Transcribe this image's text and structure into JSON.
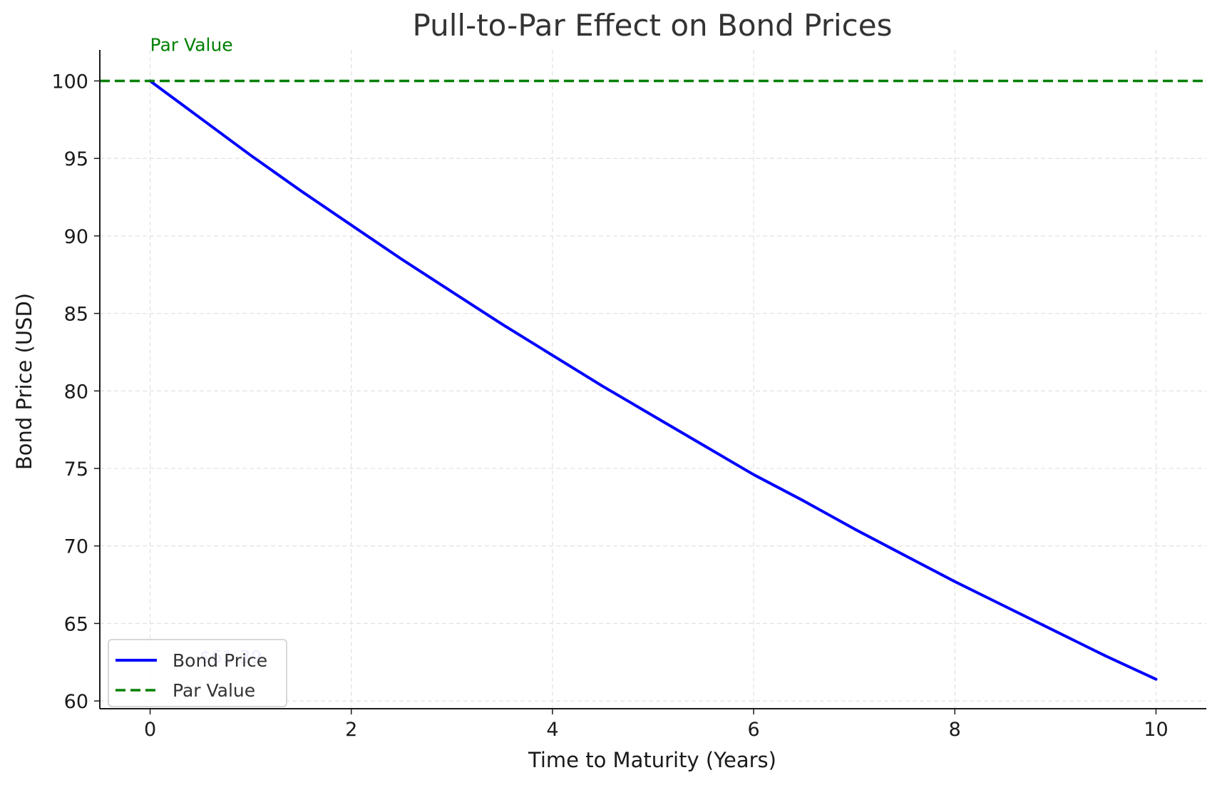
{
  "chart_data": {
    "type": "line",
    "title": "Pull-to-Par Effect on Bond Prices",
    "xlabel": "Time to Maturity (Years)",
    "ylabel": "Bond Price (USD)",
    "xlim": [
      -0.5,
      10.5
    ],
    "ylim": [
      59.5,
      102
    ],
    "xticks": [
      0,
      2,
      4,
      6,
      8,
      10
    ],
    "yticks": [
      60,
      65,
      70,
      75,
      80,
      85,
      90,
      95,
      100
    ],
    "grid": true,
    "legend_position": "lower-left",
    "series": [
      {
        "name": "Bond Price",
        "color": "#0000ff",
        "style": "solid",
        "x": [
          0,
          0.5,
          1,
          1.5,
          2,
          2.5,
          3,
          3.5,
          4,
          4.5,
          5,
          5.5,
          6,
          6.5,
          7,
          7.5,
          8,
          8.5,
          9,
          9.5,
          10
        ],
        "y": [
          100,
          97.6,
          95.2,
          92.9,
          90.7,
          88.5,
          86.4,
          84.3,
          82.3,
          80.3,
          78.4,
          76.5,
          74.6,
          72.9,
          71.1,
          69.4,
          67.7,
          66.1,
          64.5,
          62.9,
          61.4
        ]
      },
      {
        "name": "Par Value",
        "color": "#008000",
        "style": "dashed",
        "y_constant": 100
      }
    ],
    "annotations": [
      {
        "text": "Par Value",
        "x": 0,
        "y": 100,
        "color": "#008000"
      },
      {
        "text": "$61.39",
        "x": 10,
        "y": 61.39,
        "color": "#0000ff"
      }
    ]
  }
}
